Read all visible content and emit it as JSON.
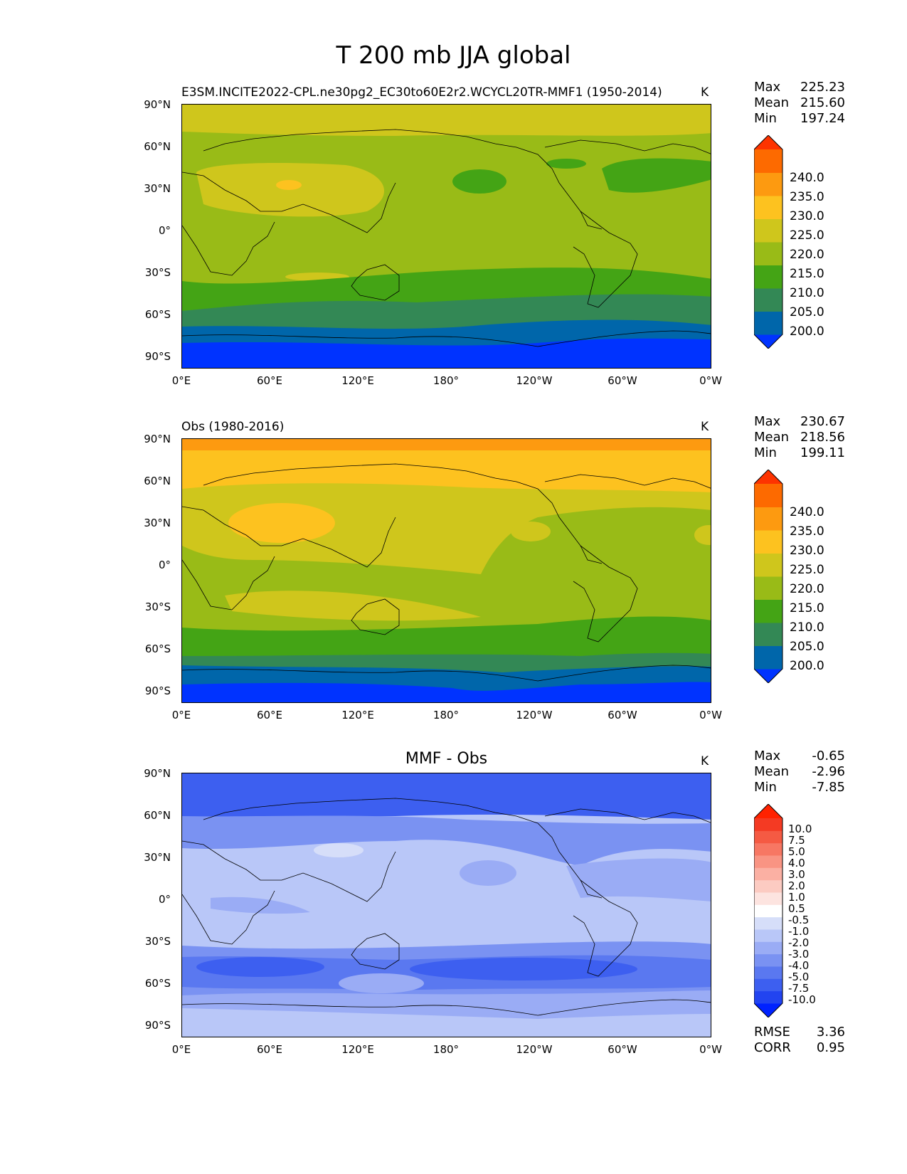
{
  "figure_title": "T 200 mb JJA global",
  "axes": {
    "lat_labels": [
      "90°N",
      "60°N",
      "30°N",
      "0°",
      "30°S",
      "60°S",
      "90°S"
    ],
    "lon_labels": [
      "0°E",
      "60°E",
      "120°E",
      "180°",
      "120°W",
      "60°W",
      "0°W"
    ]
  },
  "panels": [
    {
      "title": "E3SM.INCITE2022-CPL.ne30pg2_EC30to60E2r2.WCYCL20TR-MMF1 (1950-2014)",
      "units": "K",
      "stats": {
        "max_label": "Max",
        "max": "225.23",
        "mean_label": "Mean",
        "mean": "215.60",
        "min_label": "Min",
        "min": "197.24"
      },
      "colorbar": {
        "levels": [
          "200.0",
          "205.0",
          "210.0",
          "215.0",
          "220.0",
          "225.0",
          "230.0",
          "235.0",
          "240.0"
        ],
        "colors": [
          "#0033ff",
          "#0066aa",
          "#338855",
          "#44a415",
          "#99bb17",
          "#cfc61c",
          "#fdc21f",
          "#fd9a10",
          "#fd6a00",
          "#fd3300"
        ]
      }
    },
    {
      "title": "Obs (1980-2016)",
      "units": "K",
      "stats": {
        "max_label": "Max",
        "max": "230.67",
        "mean_label": "Mean",
        "mean": "218.56",
        "min_label": "Min",
        "min": "199.11"
      },
      "colorbar": {
        "levels": [
          "200.0",
          "205.0",
          "210.0",
          "215.0",
          "220.0",
          "225.0",
          "230.0",
          "235.0",
          "240.0"
        ],
        "colors": [
          "#0033ff",
          "#0066aa",
          "#338855",
          "#44a415",
          "#99bb17",
          "#cfc61c",
          "#fdc21f",
          "#fd9a10",
          "#fd6a00",
          "#fd3300"
        ]
      }
    },
    {
      "title": "MMF - Obs",
      "units": "K",
      "stats": {
        "max_label": "Max",
        "max": "-0.65",
        "mean_label": "Mean",
        "mean": "-2.96",
        "min_label": "Min",
        "min": "-7.85"
      },
      "colorbar": {
        "levels": [
          "-10.0",
          "-7.5",
          "-5.0",
          "-4.0",
          "-3.0",
          "-2.0",
          "-1.0",
          "-0.5",
          "0.5",
          "1.0",
          "2.0",
          "3.0",
          "4.0",
          "5.0",
          "7.5",
          "10.0"
        ],
        "colors": [
          "#0022ff",
          "#2244f0",
          "#3d5ff0",
          "#5a78f0",
          "#7a92f2",
          "#9aacf5",
          "#b9c7f8",
          "#d6def9",
          "#ffffff",
          "#fde4e0",
          "#fccbc2",
          "#fbb0a3",
          "#f99483",
          "#f77763",
          "#f55a43",
          "#f43a23",
          "#ff2200"
        ]
      },
      "rmse_label": "RMSE",
      "rmse": "3.36",
      "corr_label": "CORR",
      "corr": "0.95"
    }
  ]
}
